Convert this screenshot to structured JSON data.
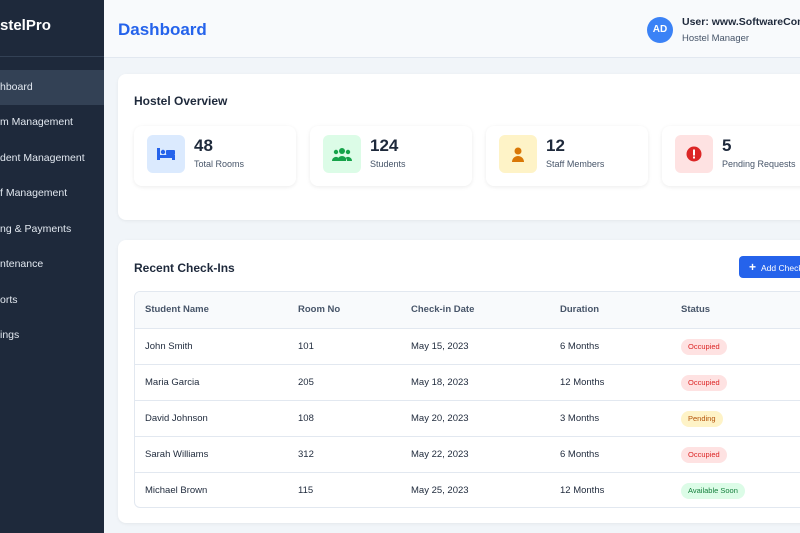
{
  "sidebar": {
    "logo": "stelPro",
    "items": [
      "hboard",
      "m Management",
      "dent Management",
      "f Management",
      "ng & Payments",
      "ntenance",
      "orts",
      "ings"
    ]
  },
  "header": {
    "title": "Dashboard",
    "avatar": "AD",
    "user": "User: www.SoftwareCom",
    "role": "Hostel Manager"
  },
  "overview": {
    "title": "Hostel Overview",
    "stats": [
      {
        "value": 48,
        "label": "Total Rooms"
      },
      {
        "value": 124,
        "label": "Students"
      },
      {
        "value": 12,
        "label": "Staff Members"
      },
      {
        "value": 5,
        "label": "Pending Requests"
      }
    ]
  },
  "checkins": {
    "title": "Recent Check-Ins",
    "button": "Add Check",
    "columns": [
      "Student Name",
      "Room No",
      "Check-in Date",
      "Duration",
      "Status"
    ],
    "rows": [
      [
        "John Smith",
        "101",
        "May 15, 2023",
        "6 Months",
        "Occupied"
      ],
      [
        "Maria Garcia",
        "205",
        "May 18, 2023",
        "12 Months",
        "Occupied"
      ],
      [
        "David Johnson",
        "108",
        "May 20, 2023",
        "3 Months",
        "Pending"
      ],
      [
        "Sarah Williams",
        "312",
        "May 22, 2023",
        "6 Months",
        "Occupied"
      ],
      [
        "Michael Brown",
        "115",
        "May 25, 2023",
        "12 Months",
        "Available Soon"
      ]
    ]
  }
}
